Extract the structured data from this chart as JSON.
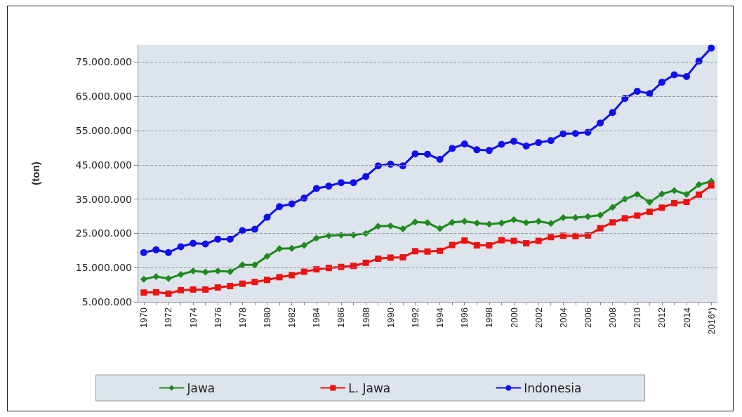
{
  "chart_data": {
    "type": "line",
    "ylabel": "(ton)",
    "categories": [
      "1970",
      null,
      "1972",
      null,
      "1974",
      null,
      "1976",
      null,
      "1978",
      null,
      "1980",
      null,
      "1982",
      null,
      "1984",
      null,
      "1986",
      null,
      "1988",
      null,
      "1990",
      null,
      "1992",
      null,
      "1994",
      null,
      "1996",
      null,
      "1998",
      null,
      "2000",
      null,
      "2002",
      null,
      "2004",
      null,
      "2006",
      null,
      "2008",
      null,
      "2010",
      null,
      "2012",
      null,
      "2014",
      null,
      "2016*)"
    ],
    "series": [
      {
        "name": "Jawa",
        "color": "#1e8a1e",
        "marker": "diamond",
        "values": [
          11600000,
          12400000,
          11800000,
          13000000,
          14000000,
          13700000,
          14000000,
          13800000,
          15800000,
          15800000,
          18300000,
          20500000,
          20600000,
          21500000,
          23600000,
          24300000,
          24500000,
          24500000,
          25000000,
          27100000,
          27200000,
          26300000,
          28300000,
          28100000,
          26400000,
          28200000,
          28500000,
          28000000,
          27700000,
          28000000,
          29000000,
          28100000,
          28500000,
          27900000,
          29600000,
          29600000,
          29900000,
          30300000,
          32600000,
          35000000,
          36400000,
          34100000,
          36500000,
          37500000,
          36400000,
          39200000,
          40200000
        ]
      },
      {
        "name": "L. Jawa",
        "color": "#ee1111",
        "marker": "square",
        "values": [
          7700000,
          7800000,
          7400000,
          8400000,
          8600000,
          8600000,
          9200000,
          9600000,
          10300000,
          10800000,
          11400000,
          12200000,
          12800000,
          13800000,
          14500000,
          14900000,
          15200000,
          15500000,
          16400000,
          17600000,
          17900000,
          18000000,
          19800000,
          19700000,
          19900000,
          21600000,
          22900000,
          21500000,
          21500000,
          23000000,
          22800000,
          22100000,
          22800000,
          23900000,
          24300000,
          24200000,
          24400000,
          26500000,
          28200000,
          29400000,
          30200000,
          31300000,
          32500000,
          33800000,
          34200000,
          36300000,
          39000000
        ]
      },
      {
        "name": "Indonesia",
        "color": "#1010ee",
        "marker": "circle",
        "values": [
          19400000,
          20200000,
          19400000,
          21100000,
          22100000,
          21900000,
          23300000,
          23300000,
          25800000,
          26200000,
          29700000,
          32800000,
          33600000,
          35300000,
          38100000,
          38800000,
          39800000,
          39800000,
          41600000,
          44700000,
          45200000,
          44700000,
          48200000,
          48100000,
          46600000,
          49800000,
          51100000,
          49400000,
          49200000,
          51000000,
          51900000,
          50500000,
          51500000,
          52100000,
          54100000,
          54200000,
          54500000,
          57200000,
          60300000,
          64400000,
          66500000,
          65800000,
          69100000,
          71300000,
          70800000,
          75300000,
          79100000
        ]
      }
    ],
    "ylim": [
      5000000,
      80000000
    ],
    "yticks": [
      {
        "value": 5000000,
        "label": "5.000.000"
      },
      {
        "value": 15000000,
        "label": "15.000.000"
      },
      {
        "value": 25000000,
        "label": "25.000.000"
      },
      {
        "value": 35000000,
        "label": "35.000.000"
      },
      {
        "value": 45000000,
        "label": "45.000.000"
      },
      {
        "value": 55000000,
        "label": "55.000.000"
      },
      {
        "value": 65000000,
        "label": "65.000.000"
      },
      {
        "value": 75000000,
        "label": "75.000.000"
      }
    ],
    "grid": "y",
    "legend": "bottom",
    "line_style": "solid"
  }
}
